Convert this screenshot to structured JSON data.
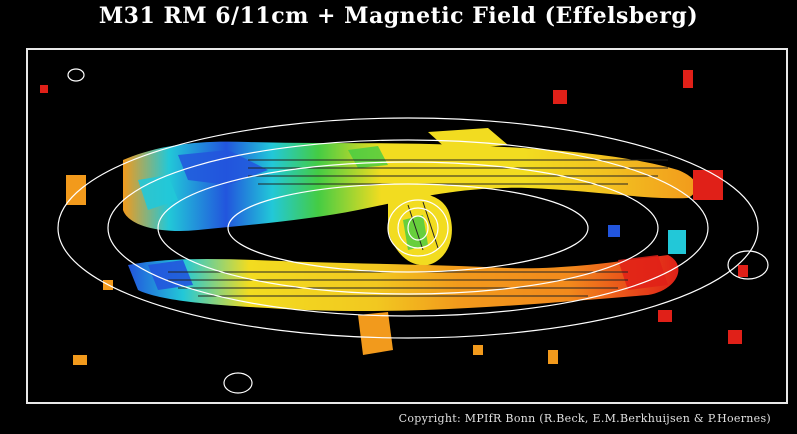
{
  "figure": {
    "title": "M31 RM 6/11cm + Magnetic Field (Effelsberg)",
    "copyright": "Copyright: MPIfR Bonn (R.Beck, E.M.Berkhuijsen & P.Hoernes)"
  },
  "colors": {
    "background": "#000000",
    "frame": "#e8e8e8",
    "contours": "#ffffff",
    "vectors": "#222222",
    "rm_blue": "#2255dd",
    "rm_cyan": "#22c8d8",
    "rm_green": "#44cc44",
    "rm_yellow": "#f2dc20",
    "rm_orange": "#f29a1c",
    "rm_red": "#e02018"
  }
}
